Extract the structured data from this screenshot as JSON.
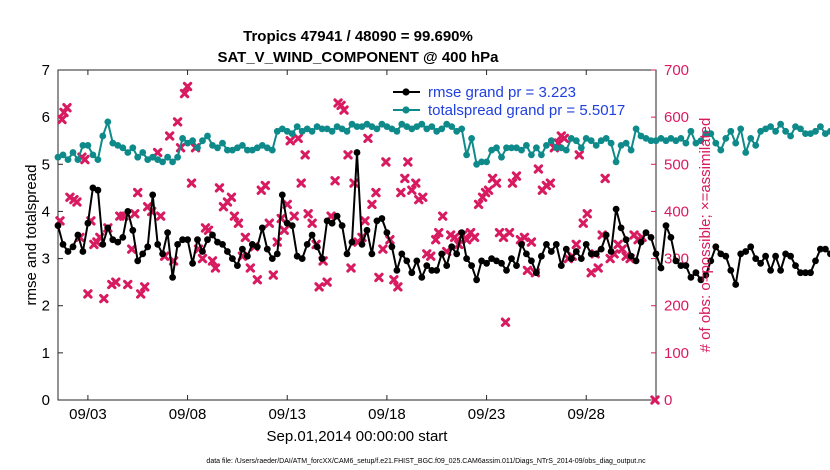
{
  "chart_data": {
    "type": "line",
    "title_line1": "Tropics 47941 / 48090 = 99.690%",
    "title_line2": "SAT_V_WIND_COMPONENT @ 400 hPa",
    "xlabel": "Sep.01,2014 00:00:00 start",
    "ylabel_left": "rmse and totalspread",
    "ylabel_right": "# of obs: o=possible; ×=assimilated",
    "xlim": [
      1.5,
      31.5
    ],
    "ylim_left": [
      0,
      7
    ],
    "ylim_right": [
      0,
      700
    ],
    "x_ticks": [
      {
        "x": 3,
        "label": "09/03"
      },
      {
        "x": 8,
        "label": "09/08"
      },
      {
        "x": 13,
        "label": "09/13"
      },
      {
        "x": 18,
        "label": "09/18"
      },
      {
        "x": 23,
        "label": "09/23"
      },
      {
        "x": 28,
        "label": "09/28"
      }
    ],
    "y_ticks_left": [
      "0",
      "1",
      "2",
      "3",
      "4",
      "5",
      "6",
      "7"
    ],
    "y_ticks_right": [
      "0",
      "100",
      "200",
      "300",
      "400",
      "500",
      "600",
      "700"
    ],
    "x_start": 1.5,
    "x_step": 0.25,
    "colors": {
      "rmse": "#000000",
      "spread": "#0e8a8a",
      "obs": "#d81b60",
      "right_axis": "#d81b60",
      "legend_text": "#1f3fe0"
    },
    "legend": [
      {
        "label": "rmse grand pr = 3.223",
        "series": "rmse"
      },
      {
        "label": "totalspread grand pr = 5.5017",
        "series": "spread"
      }
    ],
    "series": [
      {
        "name": "rmse",
        "axis": "left",
        "values": [
          3.7,
          3.3,
          3.15,
          3.25,
          3.5,
          3.15,
          3.75,
          4.5,
          4.45,
          3.3,
          3.65,
          3.4,
          3.35,
          3.45,
          4.0,
          3.6,
          2.95,
          3.1,
          3.25,
          4.35,
          3.3,
          3.1,
          3.55,
          2.6,
          3.3,
          3.4,
          3.4,
          2.9,
          3.4,
          3.15,
          3.4,
          3.5,
          3.35,
          3.3,
          3.15,
          3.0,
          2.85,
          3.2,
          3.05,
          3.3,
          3.25,
          3.65,
          3.2,
          3.0,
          3.1,
          4.35,
          3.75,
          3.7,
          3.05,
          3.0,
          3.3,
          3.5,
          3.25,
          3.0,
          3.8,
          3.75,
          3.9,
          3.7,
          3.1,
          3.35,
          5.25,
          3.3,
          3.6,
          3.1,
          3.8,
          3.85,
          3.55,
          3.25,
          2.75,
          3.1,
          2.95,
          2.7,
          2.95,
          2.6,
          2.85,
          2.75,
          2.75,
          3.1,
          2.85,
          3.25,
          3.1,
          3.55,
          3.0,
          2.85,
          2.55,
          2.95,
          2.9,
          3.0,
          2.95,
          2.9,
          2.75,
          3.0,
          2.85,
          3.3,
          3.1,
          2.95,
          2.7,
          3.05,
          3.3,
          3.15,
          3.3,
          2.85,
          3.2,
          3.0,
          3.15,
          3.0,
          3.3,
          3.1,
          3.1,
          3.2,
          3.5,
          3.15,
          4.05,
          3.65,
          3.4,
          3.05,
          2.95,
          3.35,
          3.55,
          3.45,
          3.1,
          2.8,
          3.7,
          3.45,
          2.95,
          2.85,
          2.85,
          2.6,
          2.7,
          2.55,
          2.65,
          2.95,
          3.25,
          3.1,
          3.05,
          2.75,
          2.45,
          3.1,
          3.15,
          3.25,
          3.0,
          2.9,
          3.05,
          2.75,
          3.05,
          2.75,
          3.1,
          3.05,
          2.85,
          2.7,
          2.7,
          2.7,
          2.95,
          3.2,
          3.2,
          3.1
        ]
      },
      {
        "name": "spread",
        "axis": "left",
        "values": [
          5.15,
          5.2,
          5.1,
          5.25,
          5.1,
          5.4,
          5.4,
          5.2,
          5.1,
          5.6,
          5.9,
          5.45,
          5.4,
          5.35,
          5.25,
          5.35,
          5.15,
          5.25,
          5.1,
          5.15,
          5.1,
          5.05,
          5.15,
          5.05,
          5.15,
          5.55,
          5.45,
          5.5,
          5.35,
          5.5,
          5.6,
          5.4,
          5.35,
          5.45,
          5.3,
          5.3,
          5.35,
          5.4,
          5.3,
          5.3,
          5.35,
          5.4,
          5.35,
          5.3,
          5.7,
          5.75,
          5.7,
          5.65,
          5.8,
          5.7,
          5.75,
          5.7,
          5.8,
          5.75,
          5.75,
          5.7,
          5.8,
          5.75,
          5.7,
          5.85,
          5.8,
          5.8,
          5.85,
          5.8,
          5.75,
          5.85,
          5.8,
          5.75,
          5.7,
          5.85,
          5.8,
          5.75,
          5.8,
          5.85,
          5.75,
          5.8,
          5.7,
          5.75,
          5.85,
          5.8,
          5.7,
          5.75,
          5.2,
          5.55,
          5.0,
          5.05,
          5.05,
          5.3,
          5.35,
          5.15,
          5.35,
          5.35,
          5.35,
          5.3,
          5.4,
          5.2,
          5.35,
          5.2,
          5.4,
          5.5,
          5.35,
          5.35,
          5.3,
          5.55,
          5.5,
          5.35,
          5.55,
          5.5,
          5.4,
          5.5,
          5.55,
          5.45,
          5.05,
          5.4,
          5.45,
          5.3,
          5.75,
          5.6,
          5.55,
          5.5,
          5.5,
          5.55,
          5.5,
          5.55,
          5.5,
          5.55,
          5.45,
          5.7,
          5.45,
          5.5,
          5.65,
          5.65,
          5.45,
          5.3,
          5.55,
          5.7,
          5.45,
          5.75,
          5.25,
          5.55,
          5.4,
          5.7,
          5.75,
          5.8,
          5.7,
          5.85,
          5.7,
          5.6,
          5.8,
          5.75,
          5.65,
          5.65,
          5.7,
          5.8,
          5.65,
          5.7
        ]
      },
      {
        "name": "obs_assimilated",
        "axis": "right",
        "marker": "x",
        "points": [
          [
            1.6,
            380
          ],
          [
            1.7,
            595
          ],
          [
            1.8,
            610
          ],
          [
            1.95,
            620
          ],
          [
            2.1,
            430
          ],
          [
            2.3,
            425
          ],
          [
            2.45,
            420
          ],
          [
            2.6,
            345
          ],
          [
            2.7,
            515
          ],
          [
            2.85,
            510
          ],
          [
            3.0,
            225
          ],
          [
            3.15,
            380
          ],
          [
            3.3,
            330
          ],
          [
            3.45,
            335
          ],
          [
            3.6,
            345
          ],
          [
            3.8,
            215
          ],
          [
            4.0,
            365
          ],
          [
            4.2,
            245
          ],
          [
            4.4,
            250
          ],
          [
            4.6,
            390
          ],
          [
            4.8,
            390
          ],
          [
            5.0,
            245
          ],
          [
            5.2,
            320
          ],
          [
            5.35,
            395
          ],
          [
            5.5,
            440
          ],
          [
            5.65,
            225
          ],
          [
            5.85,
            240
          ],
          [
            6.0,
            410
          ],
          [
            6.2,
            400
          ],
          [
            6.5,
            525
          ],
          [
            6.65,
            390
          ],
          [
            6.85,
            305
          ],
          [
            7.1,
            560
          ],
          [
            7.3,
            295
          ],
          [
            7.5,
            590
          ],
          [
            7.65,
            535
          ],
          [
            7.85,
            650
          ],
          [
            8.0,
            665
          ],
          [
            8.2,
            460
          ],
          [
            8.4,
            535
          ],
          [
            8.55,
            320
          ],
          [
            8.75,
            300
          ],
          [
            8.9,
            365
          ],
          [
            9.05,
            360
          ],
          [
            9.25,
            295
          ],
          [
            9.4,
            280
          ],
          [
            9.6,
            450
          ],
          [
            9.8,
            410
          ],
          [
            10.0,
            420
          ],
          [
            10.2,
            430
          ],
          [
            10.35,
            390
          ],
          [
            10.55,
            375
          ],
          [
            10.75,
            305
          ],
          [
            10.9,
            345
          ],
          [
            11.15,
            280
          ],
          [
            11.35,
            325
          ],
          [
            11.5,
            255
          ],
          [
            11.7,
            445
          ],
          [
            11.9,
            455
          ],
          [
            12.1,
            375
          ],
          [
            12.3,
            265
          ],
          [
            12.5,
            335
          ],
          [
            12.7,
            385
          ],
          [
            12.85,
            360
          ],
          [
            13.0,
            415
          ],
          [
            13.15,
            550
          ],
          [
            13.35,
            390
          ],
          [
            13.55,
            555
          ],
          [
            13.7,
            460
          ],
          [
            13.9,
            520
          ],
          [
            14.05,
            395
          ],
          [
            14.25,
            375
          ],
          [
            14.45,
            330
          ],
          [
            14.6,
            240
          ],
          [
            14.8,
            295
          ],
          [
            15.0,
            250
          ],
          [
            15.2,
            390
          ],
          [
            15.4,
            465
          ],
          [
            15.55,
            630
          ],
          [
            15.7,
            625
          ],
          [
            15.85,
            615
          ],
          [
            16.05,
            520
          ],
          [
            16.2,
            280
          ],
          [
            16.35,
            460
          ],
          [
            16.55,
            335
          ],
          [
            16.75,
            345
          ],
          [
            16.9,
            380
          ],
          [
            17.05,
            555
          ],
          [
            17.25,
            415
          ],
          [
            17.45,
            440
          ],
          [
            17.6,
            260
          ],
          [
            17.8,
            320
          ],
          [
            17.95,
            505
          ],
          [
            18.15,
            340
          ],
          [
            18.35,
            255
          ],
          [
            18.55,
            240
          ],
          [
            18.7,
            440
          ],
          [
            18.9,
            470
          ],
          [
            19.05,
            505
          ],
          [
            19.25,
            445
          ],
          [
            19.45,
            460
          ],
          [
            19.6,
            425
          ],
          [
            19.8,
            430
          ],
          [
            20.0,
            310
          ],
          [
            20.2,
            305
          ],
          [
            20.45,
            340
          ],
          [
            20.6,
            355
          ],
          [
            20.8,
            390
          ],
          [
            21.0,
            315
          ],
          [
            21.2,
            350
          ],
          [
            21.4,
            345
          ],
          [
            21.6,
            330
          ],
          [
            21.8,
            350
          ],
          [
            22.0,
            340
          ],
          [
            22.2,
            355
          ],
          [
            22.4,
            345
          ],
          [
            22.6,
            415
          ],
          [
            22.8,
            430
          ],
          [
            22.95,
            440
          ],
          [
            23.1,
            445
          ],
          [
            23.3,
            470
          ],
          [
            23.5,
            460
          ],
          [
            23.65,
            355
          ],
          [
            23.85,
            345
          ],
          [
            23.95,
            165
          ],
          [
            24.15,
            355
          ],
          [
            24.3,
            460
          ],
          [
            24.5,
            475
          ],
          [
            24.7,
            340
          ],
          [
            24.9,
            345
          ],
          [
            25.05,
            275
          ],
          [
            25.25,
            335
          ],
          [
            25.45,
            270
          ],
          [
            25.6,
            490
          ],
          [
            25.8,
            445
          ],
          [
            26.0,
            455
          ],
          [
            26.2,
            460
          ],
          [
            26.4,
            535
          ],
          [
            26.6,
            545
          ],
          [
            26.75,
            560
          ],
          [
            26.9,
            555
          ],
          [
            27.1,
            300
          ],
          [
            27.3,
            305
          ],
          [
            27.5,
            330
          ],
          [
            27.65,
            520
          ],
          [
            27.85,
            375
          ],
          [
            28.05,
            395
          ],
          [
            28.25,
            270
          ],
          [
            28.45,
            310
          ],
          [
            28.6,
            280
          ],
          [
            28.8,
            350
          ],
          [
            28.95,
            470
          ],
          [
            29.2,
            300
          ],
          [
            29.4,
            310
          ],
          [
            29.6,
            330
          ],
          [
            29.8,
            320
          ],
          [
            30.0,
            305
          ],
          [
            30.2,
            300
          ],
          [
            30.4,
            350
          ],
          [
            30.6,
            340
          ],
          [
            30.8,
            345
          ],
          [
            31.45,
            0
          ]
        ]
      }
    ]
  },
  "footnote": "data file: /Users/raeder/DAI/ATM_forcXX/CAM6_setup/f.e21.FHIST_BGC.f09_025.CAM6assim.011/Diags_NTrS_2014-09/obs_diag_output.nc"
}
